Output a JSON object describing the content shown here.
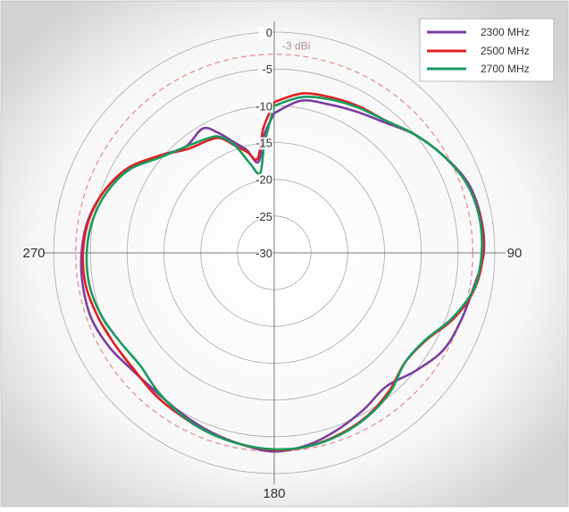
{
  "chart_data": {
    "type": "polar-line",
    "radial_axis": {
      "min": -30,
      "max": 0,
      "step": 5,
      "tick_labels": [
        "0",
        "-5",
        "-10",
        "-15",
        "-20",
        "-25",
        "-30"
      ],
      "reference_circle": {
        "value": -3,
        "label": "-3 dBi",
        "color": "#e08a8a",
        "style": "dashed"
      }
    },
    "angular_axis": {
      "labels": [
        {
          "angle": 180,
          "text": "180"
        },
        {
          "angle": 270,
          "text": "270"
        },
        {
          "angle": 90,
          "text": "90"
        }
      ],
      "direction": "clockwise",
      "zero_at": "top"
    },
    "grid": true,
    "legend": {
      "placement": "top-right"
    },
    "series": [
      {
        "name": "2300 MHz",
        "color": "#7b3fa0",
        "angles": [
          0,
          10,
          20,
          30,
          40,
          50,
          60,
          70,
          80,
          90,
          100,
          110,
          120,
          130,
          140,
          150,
          160,
          170,
          180,
          190,
          200,
          210,
          220,
          230,
          240,
          250,
          260,
          270,
          280,
          290,
          300,
          310,
          320,
          330,
          335,
          340,
          345,
          350,
          355,
          360
        ],
        "values": [
          -11,
          -9,
          -8.5,
          -7.8,
          -6.8,
          -5,
          -3.5,
          -2,
          -1.5,
          -1.5,
          -2.5,
          -3,
          -3.5,
          -5,
          -6.3,
          -5.5,
          -4.5,
          -3.5,
          -3,
          -3.6,
          -4.2,
          -4.8,
          -5.2,
          -5,
          -4.2,
          -3.6,
          -3.6,
          -3.8,
          -4.3,
          -5.4,
          -7,
          -9.5,
          -11.2,
          -10.5,
          -12,
          -14,
          -15.5,
          -17.5,
          -14,
          -11
        ]
      },
      {
        "name": "2500 MHz",
        "color": "#e02020",
        "angles": [
          0,
          10,
          20,
          30,
          40,
          50,
          60,
          70,
          80,
          90,
          100,
          110,
          120,
          130,
          140,
          150,
          160,
          170,
          180,
          190,
          200,
          210,
          220,
          230,
          240,
          250,
          260,
          270,
          280,
          290,
          300,
          310,
          320,
          330,
          335,
          340,
          345,
          350,
          355,
          360
        ],
        "values": [
          -9.5,
          -8,
          -7.5,
          -7,
          -6.5,
          -5,
          -3.5,
          -2.2,
          -1.6,
          -1.6,
          -2.3,
          -4,
          -6.2,
          -6.8,
          -5.6,
          -4.5,
          -3.8,
          -3.3,
          -3.2,
          -3.6,
          -4,
          -4.5,
          -4.8,
          -5.2,
          -5,
          -4.5,
          -4,
          -4,
          -4.4,
          -5.4,
          -7,
          -9.5,
          -11.6,
          -12.3,
          -12.8,
          -14.5,
          -15.8,
          -17,
          -13,
          -9.5
        ]
      },
      {
        "name": "2700 MHz",
        "color": "#1a9a5e",
        "angles": [
          0,
          10,
          20,
          30,
          40,
          50,
          60,
          70,
          80,
          90,
          100,
          110,
          120,
          130,
          140,
          150,
          160,
          170,
          180,
          190,
          200,
          210,
          220,
          230,
          240,
          250,
          260,
          270,
          280,
          290,
          300,
          310,
          320,
          330,
          335,
          340,
          345,
          350,
          355,
          360
        ],
        "values": [
          -10,
          -8.5,
          -7.8,
          -7.2,
          -6.5,
          -5,
          -3.5,
          -2.2,
          -1.7,
          -1.8,
          -2.4,
          -4.2,
          -6.3,
          -6.8,
          -5.4,
          -4.4,
          -3.7,
          -3.3,
          -3.3,
          -3.6,
          -4,
          -4.6,
          -5.4,
          -6.2,
          -5.8,
          -5,
          -4.5,
          -4.5,
          -4.9,
          -5.8,
          -7.3,
          -9.8,
          -11.2,
          -12,
          -12.6,
          -14.5,
          -17.5,
          -19,
          -15,
          -10
        ]
      }
    ]
  }
}
